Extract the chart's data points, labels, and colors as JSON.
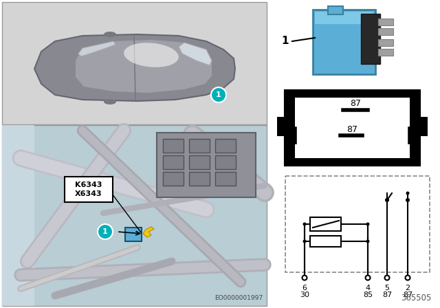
{
  "bg_color": "#ffffff",
  "car_panel_bg": "#d4d4d4",
  "engine_panel_bg": "#b8cdd4",
  "relay_blue": "#5bafd6",
  "relay_blue_light": "#7ec8e8",
  "relay_blue_dark": "#3a7fa0",
  "teal_circle": "#00b0b8",
  "label_1_color": "#00b0b8",
  "yellow_arrow": "#f0c820",
  "part_number": "365505",
  "eo_number": "EO0000001997",
  "connector_labels": [
    "K6343",
    "X6343"
  ],
  "border_color": "#999999"
}
